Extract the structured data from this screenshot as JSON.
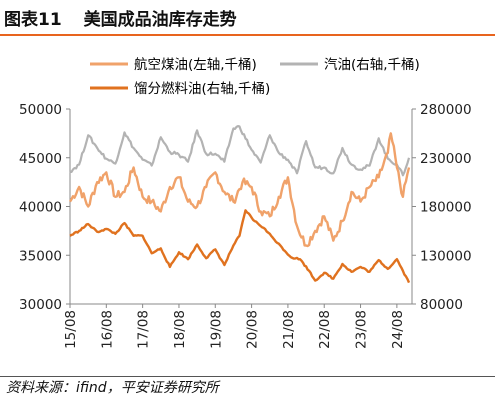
{
  "header": {
    "figure_label": "图表11",
    "title": "美国成品油库存走势"
  },
  "footer": {
    "source": "资料来源：ifind，平安证券研究所"
  },
  "colors": {
    "jet_fuel": "#f0a26a",
    "gasoline": "#b3b3b3",
    "distillate": "#e0721f",
    "title_rule": "#e8641e"
  },
  "chart_data": {
    "type": "line",
    "x_ticks": [
      "15/08",
      "16/08",
      "17/08",
      "18/08",
      "19/08",
      "20/08",
      "21/08",
      "22/08",
      "23/08",
      "24/08"
    ],
    "y_left": {
      "ticks": [
        30000,
        35000,
        40000,
        45000,
        50000
      ],
      "range": [
        30000,
        50000
      ]
    },
    "y_right": {
      "ticks": [
        80000,
        130000,
        180000,
        230000,
        280000
      ],
      "range": [
        80000,
        280000
      ]
    },
    "legend_position": "top",
    "series": [
      {
        "name": "航空煤油(左轴,千桶)",
        "axis": "left",
        "color": "#f0a26a",
        "points": [
          [
            "2015-08",
            40500
          ],
          [
            "2015-11",
            42000
          ],
          [
            "2016-02",
            40000
          ],
          [
            "2016-05",
            42500
          ],
          [
            "2016-08",
            43500
          ],
          [
            "2016-11",
            41000
          ],
          [
            "2017-02",
            41500
          ],
          [
            "2017-05",
            44000
          ],
          [
            "2017-08",
            41000
          ],
          [
            "2017-11",
            40500
          ],
          [
            "2018-02",
            39500
          ],
          [
            "2018-05",
            42000
          ],
          [
            "2018-08",
            43000
          ],
          [
            "2018-11",
            40500
          ],
          [
            "2019-02",
            40000
          ],
          [
            "2019-05",
            42000
          ],
          [
            "2019-08",
            43500
          ],
          [
            "2019-11",
            41500
          ],
          [
            "2020-02",
            40500
          ],
          [
            "2020-05",
            42500
          ],
          [
            "2020-08",
            42000
          ],
          [
            "2020-11",
            39500
          ],
          [
            "2021-02",
            39000
          ],
          [
            "2021-05",
            41000
          ],
          [
            "2021-08",
            43000
          ],
          [
            "2021-11",
            38000
          ],
          [
            "2022-02",
            36000
          ],
          [
            "2022-05",
            37500
          ],
          [
            "2022-08",
            39000
          ],
          [
            "2022-11",
            36500
          ],
          [
            "2023-02",
            38500
          ],
          [
            "2023-05",
            41500
          ],
          [
            "2023-08",
            40500
          ],
          [
            "2023-11",
            42000
          ],
          [
            "2024-02",
            43000
          ],
          [
            "2024-05",
            45500
          ],
          [
            "2024-06",
            47500
          ],
          [
            "2024-08",
            44000
          ],
          [
            "2024-10",
            41000
          ],
          [
            "2024-12",
            44000
          ]
        ]
      },
      {
        "name": "汽油(右轴,千桶)",
        "axis": "right",
        "color": "#b3b3b3",
        "points": [
          [
            "2015-08",
            216000
          ],
          [
            "2015-11",
            223000
          ],
          [
            "2016-02",
            253000
          ],
          [
            "2016-05",
            240000
          ],
          [
            "2016-08",
            229000
          ],
          [
            "2016-11",
            224000
          ],
          [
            "2017-02",
            256000
          ],
          [
            "2017-05",
            240000
          ],
          [
            "2017-08",
            228000
          ],
          [
            "2017-11",
            222000
          ],
          [
            "2018-02",
            251000
          ],
          [
            "2018-05",
            236000
          ],
          [
            "2018-08",
            233000
          ],
          [
            "2018-11",
            226000
          ],
          [
            "2019-02",
            258000
          ],
          [
            "2019-05",
            234000
          ],
          [
            "2019-08",
            234000
          ],
          [
            "2019-11",
            226000
          ],
          [
            "2020-02",
            260000
          ],
          [
            "2020-04",
            262000
          ],
          [
            "2020-08",
            238000
          ],
          [
            "2020-11",
            225000
          ],
          [
            "2021-02",
            253000
          ],
          [
            "2021-05",
            235000
          ],
          [
            "2021-08",
            228000
          ],
          [
            "2021-11",
            214000
          ],
          [
            "2022-02",
            247000
          ],
          [
            "2022-05",
            220000
          ],
          [
            "2022-08",
            220000
          ],
          [
            "2022-11",
            214000
          ],
          [
            "2023-02",
            240000
          ],
          [
            "2023-05",
            223000
          ],
          [
            "2023-08",
            218000
          ],
          [
            "2023-11",
            222000
          ],
          [
            "2024-02",
            250000
          ],
          [
            "2024-05",
            229000
          ],
          [
            "2024-08",
            223000
          ],
          [
            "2024-10",
            212000
          ],
          [
            "2024-12",
            230000
          ]
        ]
      },
      {
        "name": "馏分燃料油(右轴,千桶)",
        "axis": "right",
        "color": "#e0721f",
        "points": [
          [
            "2015-08",
            150000
          ],
          [
            "2015-11",
            155000
          ],
          [
            "2016-02",
            162000
          ],
          [
            "2016-05",
            154000
          ],
          [
            "2016-08",
            157000
          ],
          [
            "2016-11",
            152000
          ],
          [
            "2017-02",
            163000
          ],
          [
            "2017-05",
            150000
          ],
          [
            "2017-08",
            150000
          ],
          [
            "2017-11",
            132000
          ],
          [
            "2018-02",
            137000
          ],
          [
            "2018-05",
            118000
          ],
          [
            "2018-08",
            133000
          ],
          [
            "2018-11",
            126000
          ],
          [
            "2019-02",
            141000
          ],
          [
            "2019-05",
            127000
          ],
          [
            "2019-08",
            136000
          ],
          [
            "2019-11",
            120000
          ],
          [
            "2020-02",
            140000
          ],
          [
            "2020-04",
            150000
          ],
          [
            "2020-06",
            176000
          ],
          [
            "2020-09",
            165000
          ],
          [
            "2020-12",
            158000
          ],
          [
            "2021-03",
            148000
          ],
          [
            "2021-06",
            138000
          ],
          [
            "2021-09",
            128000
          ],
          [
            "2021-12",
            126000
          ],
          [
            "2022-03",
            114000
          ],
          [
            "2022-05",
            104000
          ],
          [
            "2022-08",
            112000
          ],
          [
            "2022-11",
            106000
          ],
          [
            "2023-02",
            121000
          ],
          [
            "2023-05",
            113000
          ],
          [
            "2023-08",
            118000
          ],
          [
            "2023-11",
            113000
          ],
          [
            "2024-02",
            125000
          ],
          [
            "2024-05",
            116000
          ],
          [
            "2024-08",
            126000
          ],
          [
            "2024-10",
            114000
          ],
          [
            "2024-12",
            102000
          ]
        ]
      }
    ]
  }
}
